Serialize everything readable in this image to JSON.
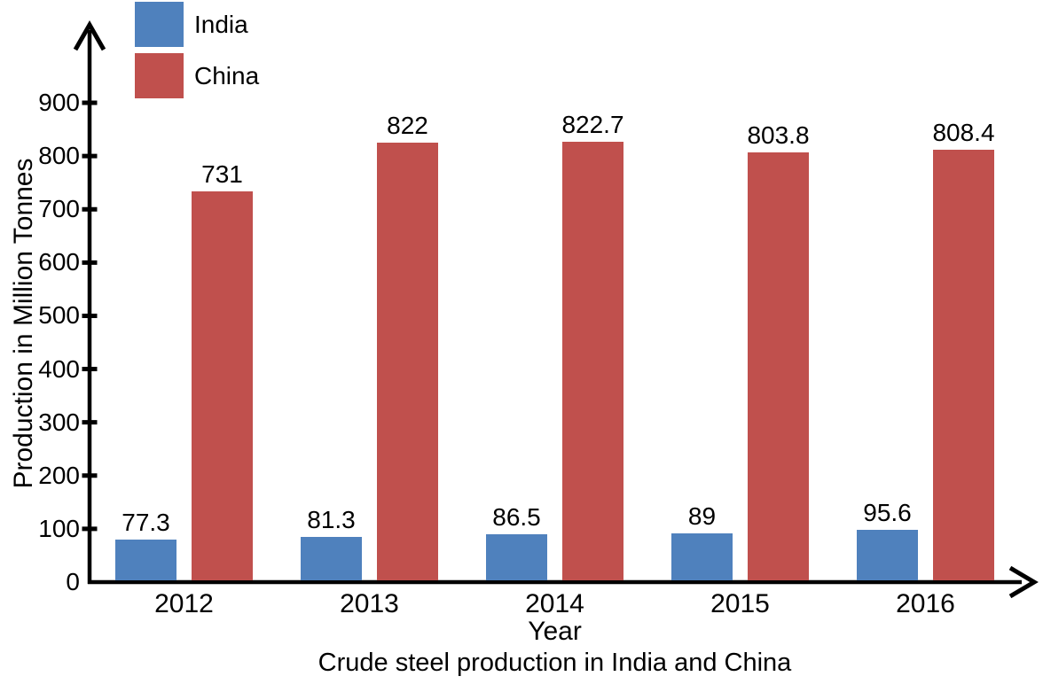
{
  "chart_data": {
    "type": "bar",
    "title": "Crude steel production in India and China",
    "xlabel": "Year",
    "ylabel": "Production in Million Tonnes",
    "categories": [
      "2012",
      "2013",
      "2014",
      "2015",
      "2016"
    ],
    "series": [
      {
        "name": "India",
        "color": "#4F81BD",
        "values": [
          77.3,
          81.3,
          86.5,
          89,
          95.6
        ],
        "labels": [
          "77.3",
          "81.3",
          "86.5",
          "89",
          "95.6"
        ]
      },
      {
        "name": "China",
        "color": "#C0504D",
        "values": [
          731,
          822,
          822.7,
          803.8,
          808.4
        ],
        "labels": [
          "731",
          "822",
          "822.7",
          "803.8",
          "808.4"
        ]
      }
    ],
    "ylim": [
      0,
      900
    ],
    "yticks": [
      0,
      100,
      200,
      300,
      400,
      500,
      600,
      700,
      800,
      900
    ],
    "grid": false,
    "legend_position": "top-left",
    "axis_color": "#000000",
    "text_color": "#000000",
    "background_color": "#FFFFFF"
  }
}
